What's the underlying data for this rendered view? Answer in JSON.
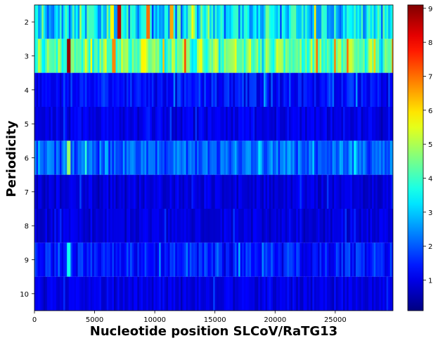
{
  "chart_data": {
    "type": "heatmap",
    "title": "",
    "xlabel": "Nucleotide position SLCoV/RaTG13",
    "ylabel": "Periodicity",
    "x_range": [
      0,
      29800
    ],
    "x_ticks": [
      0,
      5000,
      10000,
      15000,
      20000,
      25000
    ],
    "x_tick_labels": [
      "0",
      "5000",
      "10000",
      "15000",
      "20000",
      "25000"
    ],
    "rows": [
      2,
      3,
      4,
      5,
      6,
      7,
      8,
      9,
      10
    ],
    "row_labels": [
      "2",
      "3",
      "4",
      "5",
      "6",
      "7",
      "8",
      "9",
      "10"
    ],
    "colormap": "jet",
    "colorbar": {
      "range": [
        0.1,
        9.1
      ],
      "ticks": [
        1,
        2,
        3,
        4,
        5,
        6,
        7,
        8,
        9
      ],
      "tick_labels": [
        "1",
        "2",
        "3",
        "4",
        "5",
        "6",
        "7",
        "8",
        "9"
      ]
    },
    "row_profiles": [
      {
        "periodicity": 2,
        "baseline": 3.2,
        "variation": 1.4
      },
      {
        "periodicity": 3,
        "baseline": 4.3,
        "variation": 1.3
      },
      {
        "periodicity": 4,
        "baseline": 1.3,
        "variation": 0.6
      },
      {
        "periodicity": 5,
        "baseline": 1.0,
        "variation": 0.45
      },
      {
        "periodicity": 6,
        "baseline": 2.1,
        "variation": 0.8
      },
      {
        "periodicity": 7,
        "baseline": 0.9,
        "variation": 0.4
      },
      {
        "periodicity": 8,
        "baseline": 0.9,
        "variation": 0.4
      },
      {
        "periodicity": 9,
        "baseline": 1.4,
        "variation": 0.65
      },
      {
        "periodicity": 10,
        "baseline": 0.95,
        "variation": 0.4
      }
    ],
    "hotspots": [
      {
        "periodicity": 2,
        "position": 7100,
        "value": 8.6
      },
      {
        "periodicity": 2,
        "position": 9500,
        "value": 7.0
      },
      {
        "periodicity": 2,
        "position": 11400,
        "value": 6.5
      },
      {
        "periodicity": 2,
        "position": 6500,
        "value": 5.8
      },
      {
        "periodicity": 3,
        "position": 2900,
        "value": 8.9
      },
      {
        "periodicity": 3,
        "position": 6600,
        "value": 6.8
      },
      {
        "periodicity": 3,
        "position": 9000,
        "value": 5.8
      },
      {
        "periodicity": 6,
        "position": 2900,
        "value": 4.8
      },
      {
        "periodicity": 9,
        "position": 2900,
        "value": 3.6
      }
    ]
  }
}
